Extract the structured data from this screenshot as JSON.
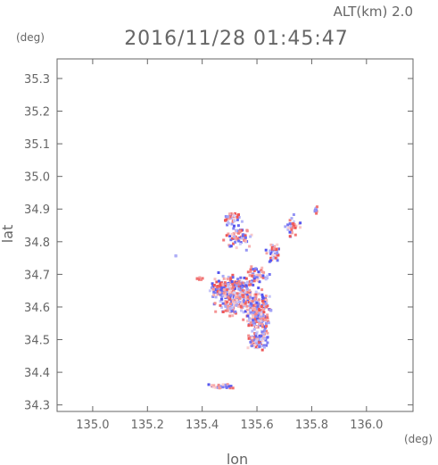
{
  "header": {
    "altitude_label": "ALT(km) 2.0",
    "timestamp": "2016/11/28 01:45:47"
  },
  "chart_data": {
    "type": "heatmap",
    "title": "2016/11/28 01:45:47",
    "subtitle": "ALT(km) 2.0",
    "xlabel": "lon",
    "ylabel": "lat",
    "x_unit": "(deg)",
    "y_unit": "(deg)",
    "xlim": [
      134.87,
      136.17
    ],
    "ylim": [
      34.28,
      35.36
    ],
    "x_ticks": [
      135.0,
      135.2,
      135.4,
      135.6,
      135.8,
      136.0
    ],
    "y_ticks": [
      34.3,
      34.4,
      34.5,
      34.6,
      34.7,
      34.8,
      34.9,
      35.0,
      35.1,
      35.2,
      35.3
    ],
    "x_tick_labels": [
      "135.0",
      "135.2",
      "135.4",
      "135.6",
      "135.8",
      "136.0"
    ],
    "y_tick_labels": [
      "34.3",
      "34.4",
      "34.5",
      "34.6",
      "34.7",
      "34.8",
      "34.9",
      "35.0",
      "35.1",
      "35.2",
      "35.3"
    ],
    "grid": false,
    "colors": {
      "positive": "#ee5555",
      "negative": "#5555ee",
      "axis": "#666666"
    },
    "clusters": [
      {
        "lon": 135.52,
        "lat": 34.64,
        "rlon": 0.1,
        "rlat": 0.08,
        "count": 320
      },
      {
        "lon": 135.6,
        "lat": 34.58,
        "rlon": 0.06,
        "rlat": 0.09,
        "count": 220
      },
      {
        "lon": 135.47,
        "lat": 34.66,
        "rlon": 0.07,
        "rlat": 0.04,
        "count": 90
      },
      {
        "lon": 135.6,
        "lat": 34.5,
        "rlon": 0.05,
        "rlat": 0.04,
        "count": 90
      },
      {
        "lon": 135.53,
        "lat": 34.82,
        "rlon": 0.06,
        "rlat": 0.05,
        "count": 70
      },
      {
        "lon": 135.5,
        "lat": 34.88,
        "rlon": 0.04,
        "rlat": 0.03,
        "count": 30
      },
      {
        "lon": 135.66,
        "lat": 34.77,
        "rlon": 0.05,
        "rlat": 0.04,
        "count": 40
      },
      {
        "lon": 135.73,
        "lat": 34.85,
        "rlon": 0.04,
        "rlat": 0.04,
        "count": 30
      },
      {
        "lon": 135.81,
        "lat": 34.9,
        "rlon": 0.01,
        "rlat": 0.02,
        "count": 10
      },
      {
        "lon": 135.6,
        "lat": 34.7,
        "rlon": 0.05,
        "rlat": 0.04,
        "count": 50
      },
      {
        "lon": 135.47,
        "lat": 34.36,
        "rlon": 0.07,
        "rlat": 0.01,
        "count": 30
      },
      {
        "lon": 135.38,
        "lat": 34.69,
        "rlon": 0.02,
        "rlat": 0.01,
        "count": 6
      },
      {
        "lon": 135.3,
        "lat": 34.76,
        "rlon": 0.005,
        "rlat": 0.005,
        "count": 2
      }
    ]
  }
}
